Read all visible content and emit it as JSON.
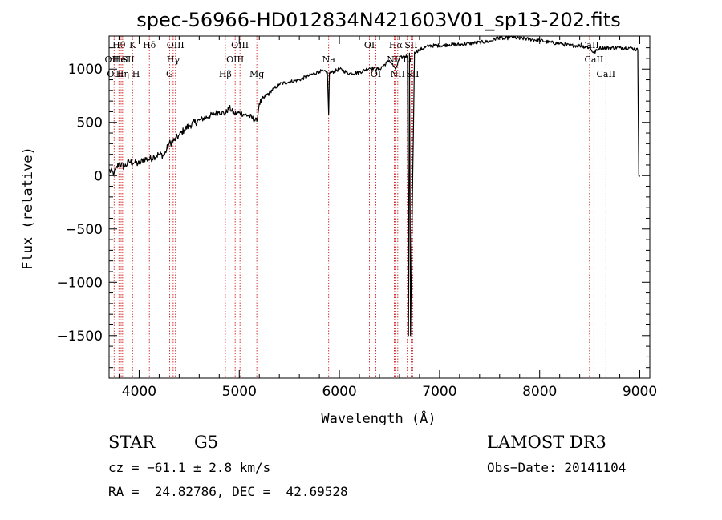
{
  "chart_data": {
    "type": "line",
    "title": "spec-56966-HD012834N421603V01_sp13-202.fits",
    "xlabel": "Wavelength (Å)",
    "ylabel": "Flux (relative)",
    "xlim": [
      3700,
      9100
    ],
    "ylim": [
      -1900,
      1310
    ],
    "x_ticks": [
      4000,
      5000,
      6000,
      7000,
      8000,
      9000
    ],
    "y_ticks": [
      -1500,
      -1000,
      -500,
      0,
      500,
      1000
    ],
    "x_tick_labels": [
      "4000",
      "5000",
      "6000",
      "7000",
      "8000",
      "9000"
    ],
    "y_tick_labels": [
      "−1500",
      "−1000",
      "−500",
      "0",
      "500",
      "1000"
    ],
    "series": [
      {
        "name": "spectrum",
        "x": [
          3700,
          3750,
          3800,
          3850,
          3900,
          3950,
          4000,
          4050,
          4100,
          4150,
          4200,
          4250,
          4300,
          4350,
          4400,
          4450,
          4500,
          4600,
          4700,
          4800,
          4860,
          4900,
          4950,
          5000,
          5100,
          5175,
          5200,
          5300,
          5400,
          5500,
          5600,
          5700,
          5800,
          5880,
          5893,
          5900,
          6000,
          6100,
          6200,
          6300,
          6400,
          6500,
          6562,
          6600,
          6650,
          6680,
          6690,
          6700,
          6710,
          6750,
          6800,
          6900,
          7000,
          7100,
          7200,
          7300,
          7400,
          7500,
          7600,
          7650,
          7700,
          7800,
          7900,
          8000,
          8100,
          8200,
          8300,
          8400,
          8500,
          8542,
          8600,
          8700,
          8800,
          8900,
          8980,
          8990,
          9000
        ],
        "y": [
          50,
          20,
          120,
          80,
          130,
          120,
          110,
          160,
          150,
          180,
          200,
          190,
          300,
          330,
          380,
          430,
          470,
          520,
          560,
          600,
          580,
          640,
          580,
          590,
          560,
          510,
          680,
          780,
          860,
          880,
          900,
          940,
          980,
          970,
          570,
          960,
          1000,
          960,
          970,
          1010,
          1000,
          1080,
          1000,
          1100,
          1120,
          1120,
          -1500,
          1150,
          -1500,
          1160,
          1180,
          1220,
          1220,
          1230,
          1230,
          1240,
          1250,
          1260,
          1300,
          1280,
          1300,
          1290,
          1280,
          1270,
          1250,
          1240,
          1220,
          1220,
          1200,
          1150,
          1200,
          1200,
          1200,
          1200,
          1180,
          0,
          0
        ]
      }
    ],
    "line_ids": [
      {
        "wl": 3727,
        "label": "OII",
        "row": 2
      },
      {
        "wl": 3750,
        "label": "OII",
        "row": 3
      },
      {
        "wl": 3798,
        "label": "Hθ",
        "row": 1
      },
      {
        "wl": 3820,
        "label": "HeI",
        "row": 2
      },
      {
        "wl": 3835,
        "label": "Hη",
        "row": 3
      },
      {
        "wl": 3889,
        "label": "SII",
        "row": 2
      },
      {
        "wl": 3934,
        "label": "K",
        "row": 1
      },
      {
        "wl": 3969,
        "label": "H",
        "row": 3
      },
      {
        "wl": 4102,
        "label": "Hδ",
        "row": 1
      },
      {
        "wl": 4304,
        "label": "G",
        "row": 3
      },
      {
        "wl": 4340,
        "label": "Hγ",
        "row": 2
      },
      {
        "wl": 4363,
        "label": "OIII",
        "row": 1
      },
      {
        "wl": 4861,
        "label": "Hβ",
        "row": 3
      },
      {
        "wl": 4959,
        "label": "OIII",
        "row": 2
      },
      {
        "wl": 5007,
        "label": "OIII",
        "row": 1
      },
      {
        "wl": 5175,
        "label": "Mg",
        "row": 3
      },
      {
        "wl": 5893,
        "label": "Na",
        "row": 2
      },
      {
        "wl": 6300,
        "label": "OI",
        "row": 1
      },
      {
        "wl": 6364,
        "label": "OI",
        "row": 3
      },
      {
        "wl": 6548,
        "label": "NII",
        "row": 2
      },
      {
        "wl": 6563,
        "label": "Hα",
        "row": 1
      },
      {
        "wl": 6583,
        "label": "NII",
        "row": 3
      },
      {
        "wl": 6678,
        "label": "Li",
        "row": 2
      },
      {
        "wl": 6716,
        "label": "SII",
        "row": 1
      },
      {
        "wl": 6731,
        "label": "SII",
        "row": 3
      },
      {
        "wl": 8498,
        "label": "CaII",
        "row": 1
      },
      {
        "wl": 8542,
        "label": "CaII",
        "row": 2
      },
      {
        "wl": 8662,
        "label": "CaII",
        "row": 3
      }
    ]
  },
  "info": {
    "object_class": "STAR",
    "subclass": "G5",
    "survey": "LAMOST DR3",
    "cz": "cz = −61.1 ± 2.8 km/s",
    "obs_date": "Obs−Date: 20141104",
    "coords": "RA =  24.82786, DEC =  42.69528"
  }
}
